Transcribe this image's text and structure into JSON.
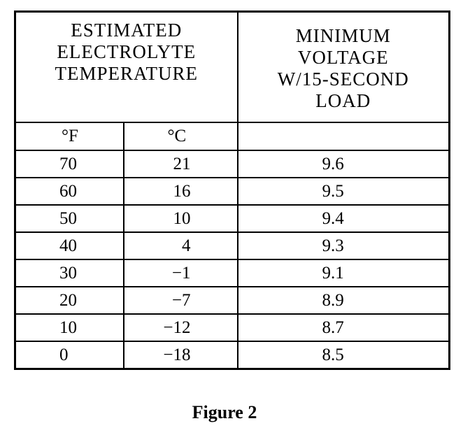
{
  "table": {
    "header_left": "ESTIMATED\nELECTROLYTE\nTEMPERATURE",
    "header_right": "MINIMUM\nVOLTAGE\nW/15-SECOND\nLOAD",
    "unit_f": "°F",
    "unit_c": "°C",
    "unit_v": "",
    "rows": [
      {
        "f": "70",
        "c": "21",
        "v": "9.6"
      },
      {
        "f": "60",
        "c": "16",
        "v": "9.5"
      },
      {
        "f": "50",
        "c": "10",
        "v": "9.4"
      },
      {
        "f": "40",
        "c": "4",
        "v": "9.3"
      },
      {
        "f": "30",
        "c": "−1",
        "v": "9.1"
      },
      {
        "f": "20",
        "c": "−7",
        "v": "8.9"
      },
      {
        "f": "10",
        "c": "−12",
        "v": "8.7"
      },
      {
        "f": "0",
        "c": "−18",
        "v": "8.5"
      }
    ]
  },
  "caption": "Figure 2"
}
